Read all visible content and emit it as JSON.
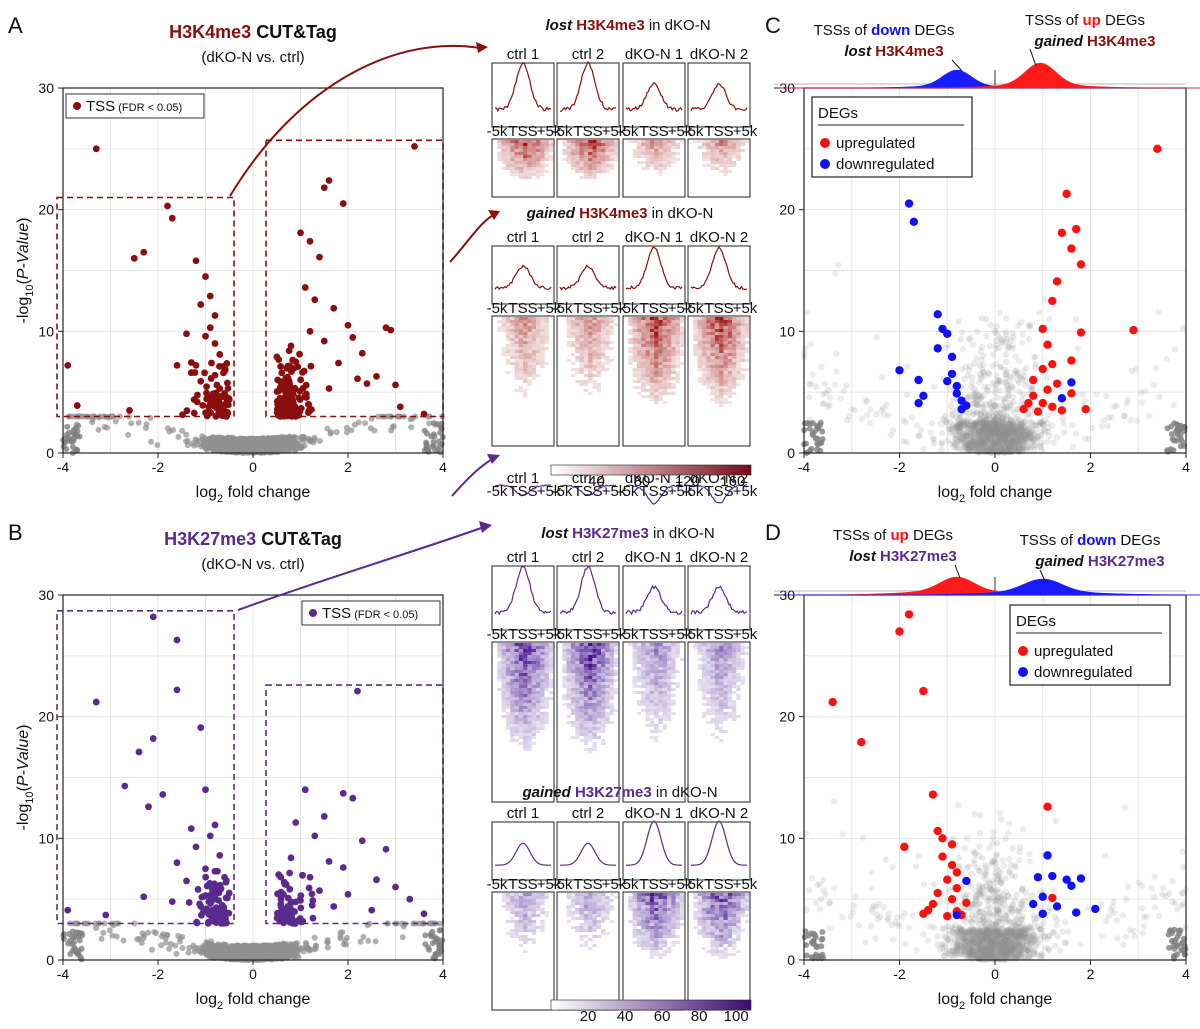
{
  "panels": {
    "A": {
      "letter": "A",
      "title_mark": "H3K4me3",
      "title_rest": " CUT&Tag",
      "subtitle": "(dKO-N vs. ctrl)",
      "legend": "TSS",
      "legend_small": "(FDR < 0.05)"
    },
    "B": {
      "letter": "B",
      "title_mark": "H3K27me3",
      "title_rest": " CUT&Tag",
      "subtitle": "(dKO-N vs. ctrl)",
      "legend": "TSS",
      "legend_small": "(FDR < 0.05)"
    },
    "C": {
      "letter": "C",
      "top_left_line1_pre": "TSSs of ",
      "top_left_line1_color": "down",
      "top_left_line1_post": " DEGs",
      "top_left_line2_em": "lost",
      "top_left_line2_mark": " H3K4me3",
      "top_right_line1_pre": "TSSs of ",
      "top_right_line1_color": "up",
      "top_right_line1_post": " DEGs",
      "top_right_line2_em": "gained",
      "top_right_line2_mark": " H3K4me3"
    },
    "D": {
      "letter": "D",
      "top_left_line1_pre": "TSSs of ",
      "top_left_line1_color": "up",
      "top_left_line1_post": " DEGs",
      "top_left_line2_em": "lost",
      "top_left_line2_mark": " H3K27me3",
      "top_right_line1_pre": "TSSs of ",
      "top_right_line1_color": "down",
      "top_right_line1_post": " DEGs",
      "top_right_line2_em": "gained",
      "top_right_line2_mark": " H3K27me3"
    }
  },
  "legend_degs": {
    "title": "DEGs",
    "up": "upregulated",
    "down": "downregulated"
  },
  "heatmaps": {
    "A_lost": {
      "em": "lost",
      "mark": " H3K4me3",
      "post": " in dKO-N"
    },
    "A_gained": {
      "em": "gained",
      "mark": " H3K4me3",
      "post": " in dKO-N"
    },
    "B_lost": {
      "em": "lost",
      "mark": " H3K27me3",
      "post": " in dKO-N"
    },
    "B_gained": {
      "em": "gained",
      "mark": " H3K27me3",
      "post": " in dKO-N"
    },
    "samples": [
      "ctrl 1",
      "ctrl 2",
      "dKO-N 1",
      "dKO-N 2"
    ],
    "x_ticks": [
      "-5k",
      "TSS",
      "+5k"
    ],
    "colorbar_A": [
      "40",
      "80",
      "120",
      "160"
    ],
    "colorbar_B": [
      "20",
      "40",
      "60",
      "80",
      "100"
    ]
  },
  "chart_data": [
    {
      "id": "A",
      "type": "scatter",
      "title": "H3K4me3 CUT&Tag",
      "xlabel": "log2 fold change",
      "ylabel": "-log10(P-Value)",
      "xlim": [
        -4,
        4
      ],
      "ylim": [
        0,
        30
      ],
      "xticks": [
        -4,
        -2,
        0,
        2,
        4
      ],
      "yticks": [
        0,
        10,
        20,
        30
      ],
      "grid": true,
      "color": "#8b0e0e",
      "points": [
        [
          -3.3,
          25
        ],
        [
          -1.8,
          20.3
        ],
        [
          -1.7,
          19.3
        ],
        [
          -2.3,
          16.5
        ],
        [
          -2.5,
          16
        ],
        [
          -1.2,
          15.8
        ],
        [
          -1.0,
          14.5
        ],
        [
          -0.9,
          12.9
        ],
        [
          -1.1,
          12.2
        ],
        [
          -0.8,
          11.3
        ],
        [
          -0.9,
          10.3
        ],
        [
          -1.4,
          9.8
        ],
        [
          -1.0,
          9.6
        ],
        [
          -0.8,
          9
        ],
        [
          -0.7,
          8.1
        ],
        [
          -1.2,
          7.2
        ],
        [
          -0.6,
          6.9
        ],
        [
          -0.8,
          6.4
        ],
        [
          -1.1,
          5.9
        ],
        [
          -0.7,
          5.3
        ],
        [
          -0.6,
          4.9
        ],
        [
          -0.5,
          4.4
        ],
        [
          -1.6,
          7.2
        ],
        [
          -1.3,
          6.6
        ],
        [
          -3.9,
          7.2
        ],
        [
          -3.7,
          3.9
        ],
        [
          -2.6,
          3.5
        ],
        [
          0.7,
          5.2
        ],
        [
          0.9,
          7.5
        ],
        [
          1.2,
          10
        ],
        [
          1.6,
          22.4
        ],
        [
          1.5,
          21.8
        ],
        [
          1.9,
          20.5
        ],
        [
          1.0,
          18.1
        ],
        [
          1.2,
          17.4
        ],
        [
          1.4,
          16.1
        ],
        [
          1.1,
          13.6
        ],
        [
          1.3,
          12.6
        ],
        [
          1.7,
          11.9
        ],
        [
          2.0,
          10.5
        ],
        [
          2.1,
          9.5
        ],
        [
          0.8,
          8.8
        ],
        [
          1.5,
          9.2
        ],
        [
          2.3,
          8.2
        ],
        [
          1.8,
          7.4
        ],
        [
          2.6,
          6.3
        ],
        [
          3.0,
          5.6
        ],
        [
          2.2,
          6.1
        ],
        [
          1.6,
          5.3
        ],
        [
          2.8,
          10.3
        ],
        [
          2.9,
          10.1
        ],
        [
          3.4,
          25.2
        ],
        [
          2.4,
          5.7
        ],
        [
          1.1,
          4.6
        ],
        [
          0.6,
          4.1
        ],
        [
          3.1,
          3.8
        ],
        [
          3.6,
          3.2
        ]
      ],
      "boxes": [
        [
          -4,
          3,
          -0.4,
          21
        ],
        [
          0.4,
          3,
          4,
          25.7
        ]
      ]
    },
    {
      "id": "B",
      "type": "scatter",
      "title": "H3K27me3 CUT&Tag",
      "xlabel": "log2 fold change",
      "ylabel": "-log10(P-Value)",
      "xlim": [
        -4,
        4
      ],
      "ylim": [
        0,
        30
      ],
      "xticks": [
        -4,
        -2,
        0,
        2,
        4
      ],
      "yticks": [
        0,
        10,
        20,
        30
      ],
      "grid": true,
      "color": "#5a2a8f",
      "points": [
        [
          -2.1,
          28.2
        ],
        [
          -1.6,
          26.3
        ],
        [
          -3.3,
          21.2
        ],
        [
          -1.6,
          22.2
        ],
        [
          -1.1,
          19.1
        ],
        [
          -2.1,
          18.2
        ],
        [
          -2.4,
          17.1
        ],
        [
          -2.7,
          14.3
        ],
        [
          -1.9,
          13.6
        ],
        [
          -2.2,
          12.6
        ],
        [
          -1.0,
          14.0
        ],
        [
          -0.8,
          11.1
        ],
        [
          -1.3,
          10.8
        ],
        [
          -0.9,
          10.2
        ],
        [
          -1.2,
          9.3
        ],
        [
          -0.7,
          8.6
        ],
        [
          -1.6,
          8.0
        ],
        [
          -1.0,
          7.5
        ],
        [
          -0.6,
          6.8
        ],
        [
          -1.4,
          6.5
        ],
        [
          -0.8,
          6.0
        ],
        [
          -0.5,
          5.5
        ],
        [
          -2.3,
          5.2
        ],
        [
          -1.7,
          4.8
        ],
        [
          -1.1,
          4.4
        ],
        [
          -0.6,
          4.0
        ],
        [
          -3.9,
          4.1
        ],
        [
          -3.1,
          3.7
        ],
        [
          2.2,
          22.1
        ],
        [
          1.1,
          14.0
        ],
        [
          1.9,
          13.7
        ],
        [
          2.1,
          13.3
        ],
        [
          1.5,
          11.8
        ],
        [
          0.9,
          11.3
        ],
        [
          1.3,
          10.2
        ],
        [
          2.3,
          9.8
        ],
        [
          2.8,
          9.1
        ],
        [
          0.8,
          8.4
        ],
        [
          1.6,
          8.1
        ],
        [
          1.9,
          7.6
        ],
        [
          1.2,
          6.8
        ],
        [
          2.6,
          6.6
        ],
        [
          0.7,
          6.2
        ],
        [
          3.0,
          6.0
        ],
        [
          1.4,
          5.7
        ],
        [
          2.0,
          5.4
        ],
        [
          3.3,
          5.0
        ],
        [
          1.0,
          4.9
        ],
        [
          1.7,
          4.4
        ],
        [
          0.6,
          4.3
        ],
        [
          2.5,
          4.1
        ],
        [
          3.6,
          3.8
        ]
      ],
      "boxes": [
        [
          -4,
          3,
          -0.4,
          28.7
        ],
        [
          0.4,
          3,
          4,
          22.6
        ]
      ]
    },
    {
      "id": "C",
      "type": "scatter",
      "xlabel": "log2 fold change",
      "xlim": [
        -4,
        4
      ],
      "ylim": [
        0,
        30
      ],
      "xticks": [
        -4,
        -2,
        0,
        2,
        4
      ],
      "yticks": [
        0,
        10,
        20,
        30
      ],
      "grid": true,
      "series": [
        {
          "name": "upregulated",
          "color": "#ff1010",
          "points": [
            [
              3.4,
              25
            ],
            [
              1.5,
              21.3
            ],
            [
              1.7,
              18.4
            ],
            [
              1.4,
              18.1
            ],
            [
              1.6,
              16.8
            ],
            [
              1.8,
              15.5
            ],
            [
              1.3,
              14.1
            ],
            [
              1.2,
              12.5
            ],
            [
              1.0,
              10.2
            ],
            [
              1.8,
              9.9
            ],
            [
              2.9,
              10.1
            ],
            [
              1.1,
              8.9
            ],
            [
              1.6,
              7.6
            ],
            [
              1.2,
              7.3
            ],
            [
              1.0,
              6.9
            ],
            [
              0.8,
              6.0
            ],
            [
              1.3,
              5.7
            ],
            [
              1.1,
              5.2
            ],
            [
              1.6,
              4.9
            ],
            [
              0.8,
              4.7
            ],
            [
              0.7,
              4.1
            ],
            [
              1.0,
              4.1
            ],
            [
              1.2,
              3.8
            ],
            [
              0.6,
              3.6
            ],
            [
              1.4,
              3.5
            ],
            [
              1.9,
              3.6
            ],
            [
              0.9,
              3.4
            ]
          ]
        },
        {
          "name": "downregulated",
          "color": "#1010ff",
          "points": [
            [
              -1.8,
              20.5
            ],
            [
              -1.7,
              19
            ],
            [
              -1.2,
              11.4
            ],
            [
              -1.1,
              10.2
            ],
            [
              -1.0,
              9.8
            ],
            [
              -1.2,
              8.6
            ],
            [
              -0.9,
              7.9
            ],
            [
              -2.0,
              6.8
            ],
            [
              -1.6,
              6.0
            ],
            [
              -0.9,
              6.5
            ],
            [
              -1.0,
              5.9
            ],
            [
              -0.8,
              5.5
            ],
            [
              -1.5,
              4.7
            ],
            [
              -0.8,
              4.9
            ],
            [
              -0.7,
              4.3
            ],
            [
              -0.6,
              3.9
            ],
            [
              -1.6,
              4.1
            ],
            [
              -0.7,
              3.6
            ],
            [
              1.4,
              4.5
            ],
            [
              1.6,
              5.8
            ]
          ]
        }
      ],
      "density_up": {
        "color": "#ff1010"
      },
      "density_down": {
        "color": "#1010ff"
      }
    },
    {
      "id": "D",
      "type": "scatter",
      "xlabel": "log2 fold change",
      "xlim": [
        -4,
        4
      ],
      "ylim": [
        0,
        30
      ],
      "xticks": [
        -4,
        -2,
        0,
        2,
        4
      ],
      "yticks": [
        0,
        10,
        20,
        30
      ],
      "grid": true,
      "series": [
        {
          "name": "upregulated",
          "color": "#ff1010",
          "points": [
            [
              -1.8,
              28.4
            ],
            [
              -2.0,
              27.0
            ],
            [
              -3.4,
              21.2
            ],
            [
              -1.5,
              22.1
            ],
            [
              -2.8,
              17.9
            ],
            [
              -1.3,
              13.6
            ],
            [
              -1.2,
              10.6
            ],
            [
              -1.1,
              10.0
            ],
            [
              -0.9,
              9.5
            ],
            [
              -1.9,
              9.3
            ],
            [
              -1.1,
              8.5
            ],
            [
              -0.9,
              7.8
            ],
            [
              -0.8,
              7.2
            ],
            [
              -1.0,
              6.6
            ],
            [
              -0.8,
              5.9
            ],
            [
              -1.2,
              5.5
            ],
            [
              -0.9,
              5.0
            ],
            [
              -1.3,
              4.6
            ],
            [
              -0.6,
              4.7
            ],
            [
              -1.4,
              4.1
            ],
            [
              -0.8,
              4.0
            ],
            [
              -0.7,
              3.7
            ],
            [
              -1.0,
              3.6
            ],
            [
              -1.5,
              3.8
            ],
            [
              1.1,
              12.6
            ],
            [
              1.2,
              5.1
            ]
          ]
        },
        {
          "name": "downregulated",
          "color": "#1010ff",
          "points": [
            [
              1.1,
              8.6
            ],
            [
              0.9,
              6.8
            ],
            [
              1.2,
              6.9
            ],
            [
              1.5,
              6.6
            ],
            [
              1.8,
              6.7
            ],
            [
              1.6,
              6.1
            ],
            [
              2.1,
              4.2
            ],
            [
              1.0,
              5.2
            ],
            [
              0.8,
              4.6
            ],
            [
              1.3,
              4.4
            ],
            [
              1.0,
              3.8
            ],
            [
              1.7,
              3.9
            ],
            [
              -0.8,
              3.7
            ],
            [
              -0.6,
              6.5
            ]
          ]
        }
      ]
    }
  ]
}
